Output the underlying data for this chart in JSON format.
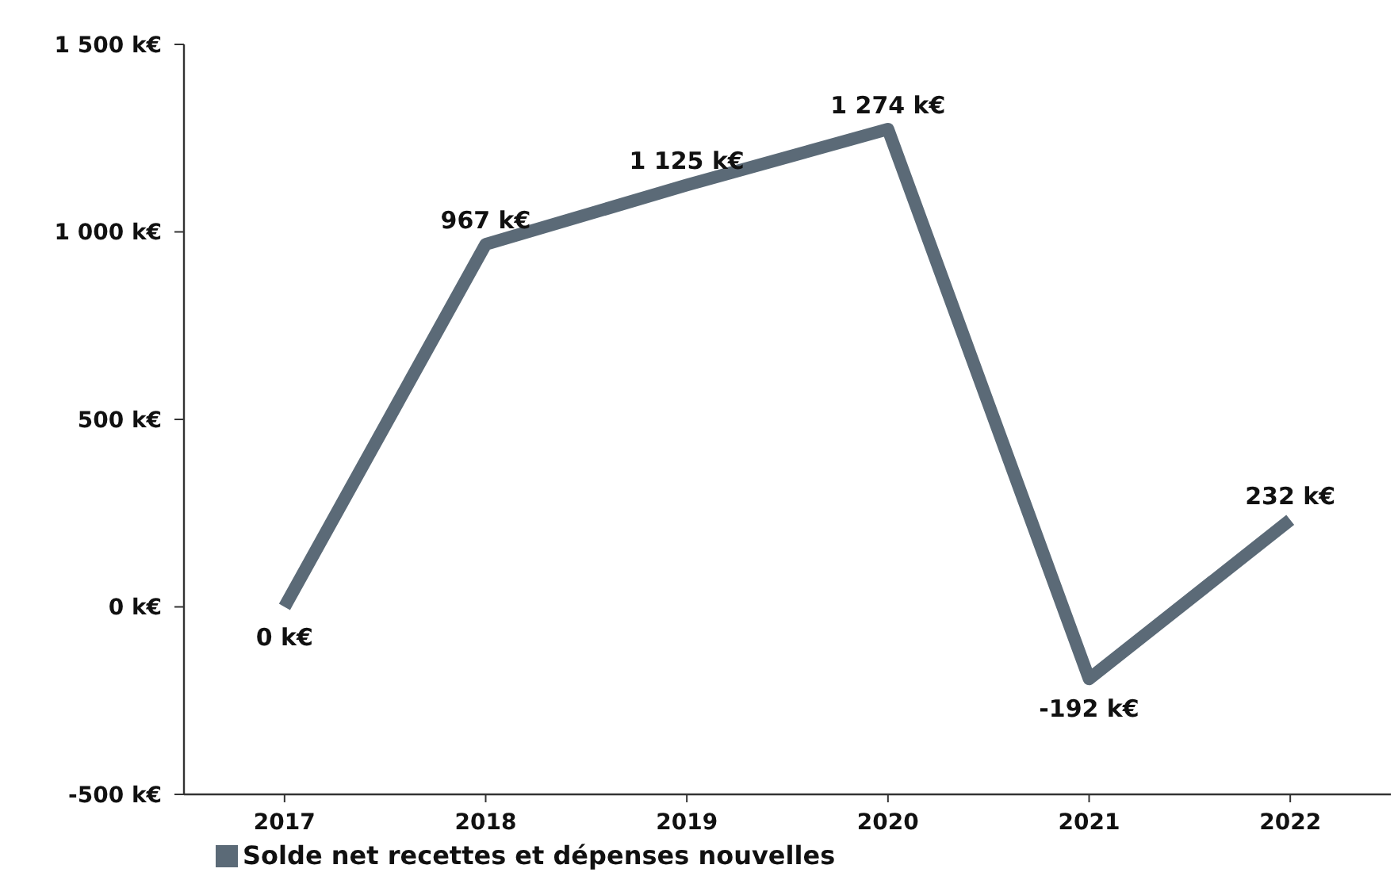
{
  "chart_data": {
    "type": "line",
    "categories": [
      "2017",
      "2018",
      "2019",
      "2020",
      "2021",
      "2022"
    ],
    "series": [
      {
        "name": "Solde net recettes et dépenses nouvelles",
        "color": "#5b6a77",
        "values": [
          0,
          967,
          1125,
          1274,
          -192,
          232
        ],
        "value_labels": [
          "0 k€",
          "967 k€",
          "1 125 k€",
          "1 274 k€",
          "-192 k€",
          "232 k€"
        ]
      }
    ],
    "ylim": [
      -500,
      1500
    ],
    "yticks": [
      {
        "value": -500,
        "label": "-500 k€"
      },
      {
        "value": 0,
        "label": "0 k€"
      },
      {
        "value": 500,
        "label": "500 k€"
      },
      {
        "value": 1000,
        "label": "1 000 k€"
      },
      {
        "value": 1500,
        "label": "1 500 k€"
      }
    ],
    "grid": false,
    "legend": "bottom left",
    "marker": "none",
    "line_style": "solid"
  }
}
